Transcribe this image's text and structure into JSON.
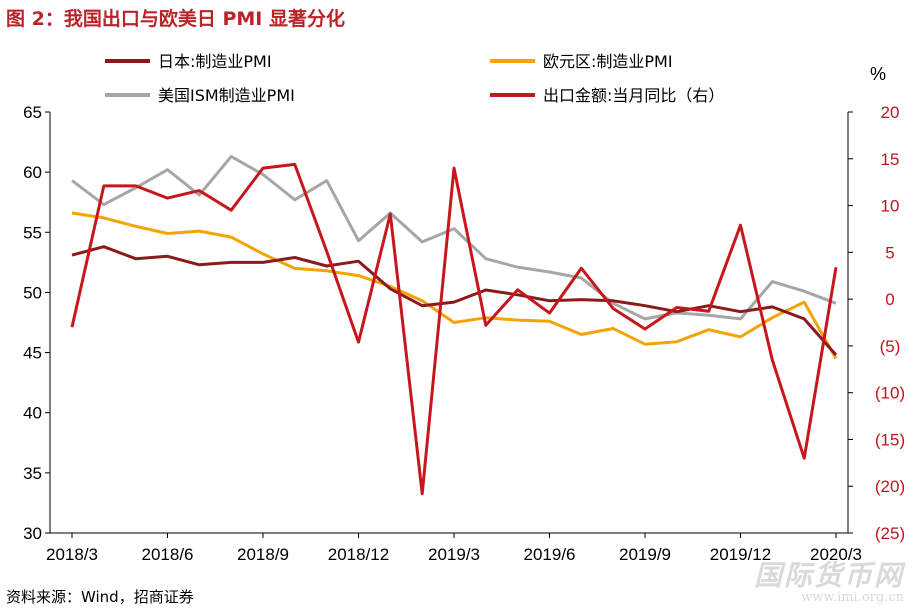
{
  "figure": {
    "title": "图 2：我国出口与欧美日 PMI 显著分化",
    "source": "资料来源：Wind，招商证券",
    "watermark_cn": "国际货币网",
    "watermark_url": "www.imi.org.cn"
  },
  "chart_data": {
    "type": "line",
    "title": "图 2：我国出口与欧美日 PMI 显著分化",
    "x_tick_labels": [
      "2018/3",
      "2018/6",
      "2018/9",
      "2018/12",
      "2019/3",
      "2019/6",
      "2019/9",
      "2019/12",
      "2020/3"
    ],
    "x": [
      "2018/3",
      "2018/4",
      "2018/5",
      "2018/6",
      "2018/7",
      "2018/8",
      "2018/9",
      "2018/10",
      "2018/11",
      "2018/12",
      "2019/1",
      "2019/2",
      "2019/3",
      "2019/4",
      "2019/5",
      "2019/6",
      "2019/7",
      "2019/8",
      "2019/9",
      "2019/10",
      "2019/11",
      "2019/12",
      "2020/1",
      "2020/2",
      "2020/3"
    ],
    "y_left": {
      "ylim": [
        30,
        65
      ],
      "ticks": [
        "30",
        "35",
        "40",
        "45",
        "50",
        "55",
        "60",
        "65"
      ]
    },
    "y_right": {
      "unit": "%",
      "ylim": [
        -25,
        20
      ],
      "ticks": [
        "20",
        "15",
        "10",
        "5",
        "0",
        "(5)",
        "(10)",
        "(15)",
        "(20)",
        "(25)"
      ]
    },
    "series": [
      {
        "name": "日本:制造业PMI",
        "color": "#8b1a1a",
        "axis": "left",
        "values": [
          53.1,
          53.8,
          52.8,
          53.0,
          52.3,
          52.5,
          52.5,
          52.9,
          52.2,
          52.6,
          50.3,
          48.9,
          49.2,
          50.2,
          49.8,
          49.3,
          49.4,
          49.3,
          48.9,
          48.4,
          48.9,
          48.4,
          48.8,
          47.8,
          44.8
        ]
      },
      {
        "name": "欧元区:制造业PMI",
        "color": "#f5a300",
        "axis": "left",
        "values": [
          56.6,
          56.2,
          55.5,
          54.9,
          55.1,
          54.6,
          53.2,
          52.0,
          51.8,
          51.4,
          50.5,
          49.3,
          47.5,
          47.9,
          47.7,
          47.6,
          46.5,
          47.0,
          45.7,
          45.9,
          46.9,
          46.3,
          47.9,
          49.2,
          44.5
        ]
      },
      {
        "name": "美国ISM制造业PMI",
        "color": "#a6a6a6",
        "axis": "left",
        "values": [
          59.3,
          57.3,
          58.7,
          60.2,
          58.1,
          61.3,
          59.8,
          57.7,
          59.3,
          54.3,
          56.6,
          54.2,
          55.3,
          52.8,
          52.1,
          51.7,
          51.2,
          49.1,
          47.8,
          48.3,
          48.1,
          47.8,
          50.9,
          50.1,
          49.1
        ]
      },
      {
        "name": "出口金额:当月同比（右）",
        "color": "#c8161d",
        "axis": "right",
        "values": [
          -3.0,
          12.1,
          12.1,
          10.8,
          11.6,
          9.5,
          14.0,
          14.4,
          5.1,
          -4.6,
          9.1,
          -20.8,
          14.0,
          -2.8,
          1.0,
          -1.5,
          3.3,
          -1.0,
          -3.2,
          -0.9,
          -1.3,
          7.9,
          -6.5,
          -17.0,
          3.4
        ]
      }
    ],
    "legend_placement": "top",
    "grid": false
  }
}
